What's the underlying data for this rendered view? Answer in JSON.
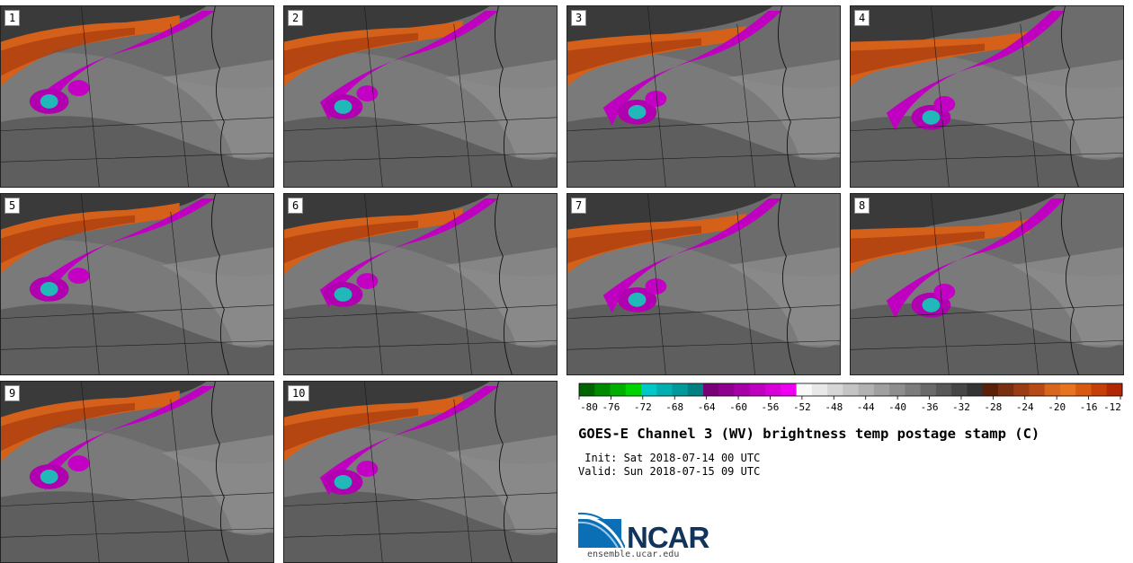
{
  "panels": [
    {
      "label": "1"
    },
    {
      "label": "2"
    },
    {
      "label": "3"
    },
    {
      "label": "4"
    },
    {
      "label": "5"
    },
    {
      "label": "6"
    },
    {
      "label": "7"
    },
    {
      "label": "8"
    },
    {
      "label": "9"
    },
    {
      "label": "10"
    }
  ],
  "colorbar": {
    "ticks": [
      "-80",
      "-76",
      "-72",
      "-68",
      "-64",
      "-60",
      "-56",
      "-52",
      "-48",
      "-44",
      "-40",
      "-36",
      "-32",
      "-28",
      "-24",
      "-20",
      "-16",
      "-12"
    ],
    "colors": [
      "#006400",
      "#008a00",
      "#00b000",
      "#00d400",
      "#00c8c8",
      "#00b0b0",
      "#009a9a",
      "#008080",
      "#7a007a",
      "#900090",
      "#a800a8",
      "#c000c0",
      "#d800d8",
      "#f000f0",
      "#f8f8f8",
      "#e8e8e8",
      "#d6d6d6",
      "#c4c4c4",
      "#b2b2b2",
      "#a0a0a0",
      "#8e8e8e",
      "#7c7c7c",
      "#6a6a6a",
      "#585858",
      "#464646",
      "#343434",
      "#5a2008",
      "#7a3010",
      "#9a3c14",
      "#b84a18",
      "#d8661c",
      "#e87420",
      "#d85a10",
      "#c44008",
      "#b02804"
    ]
  },
  "title": "GOES-E Channel 3 (WV) brightness temp postage stamp (C)",
  "init": " Init: Sat 2018-07-14 00 UTC",
  "valid": "Valid: Sun 2018-07-15 09 UTC",
  "logo": {
    "name": "NCAR",
    "url": "ensemble.ucar.edu"
  },
  "colors": {
    "band_orange": "#d4601a",
    "band_dark": "#3a3a3a",
    "moist": "#c000c0",
    "cold": "#20b8b8"
  }
}
